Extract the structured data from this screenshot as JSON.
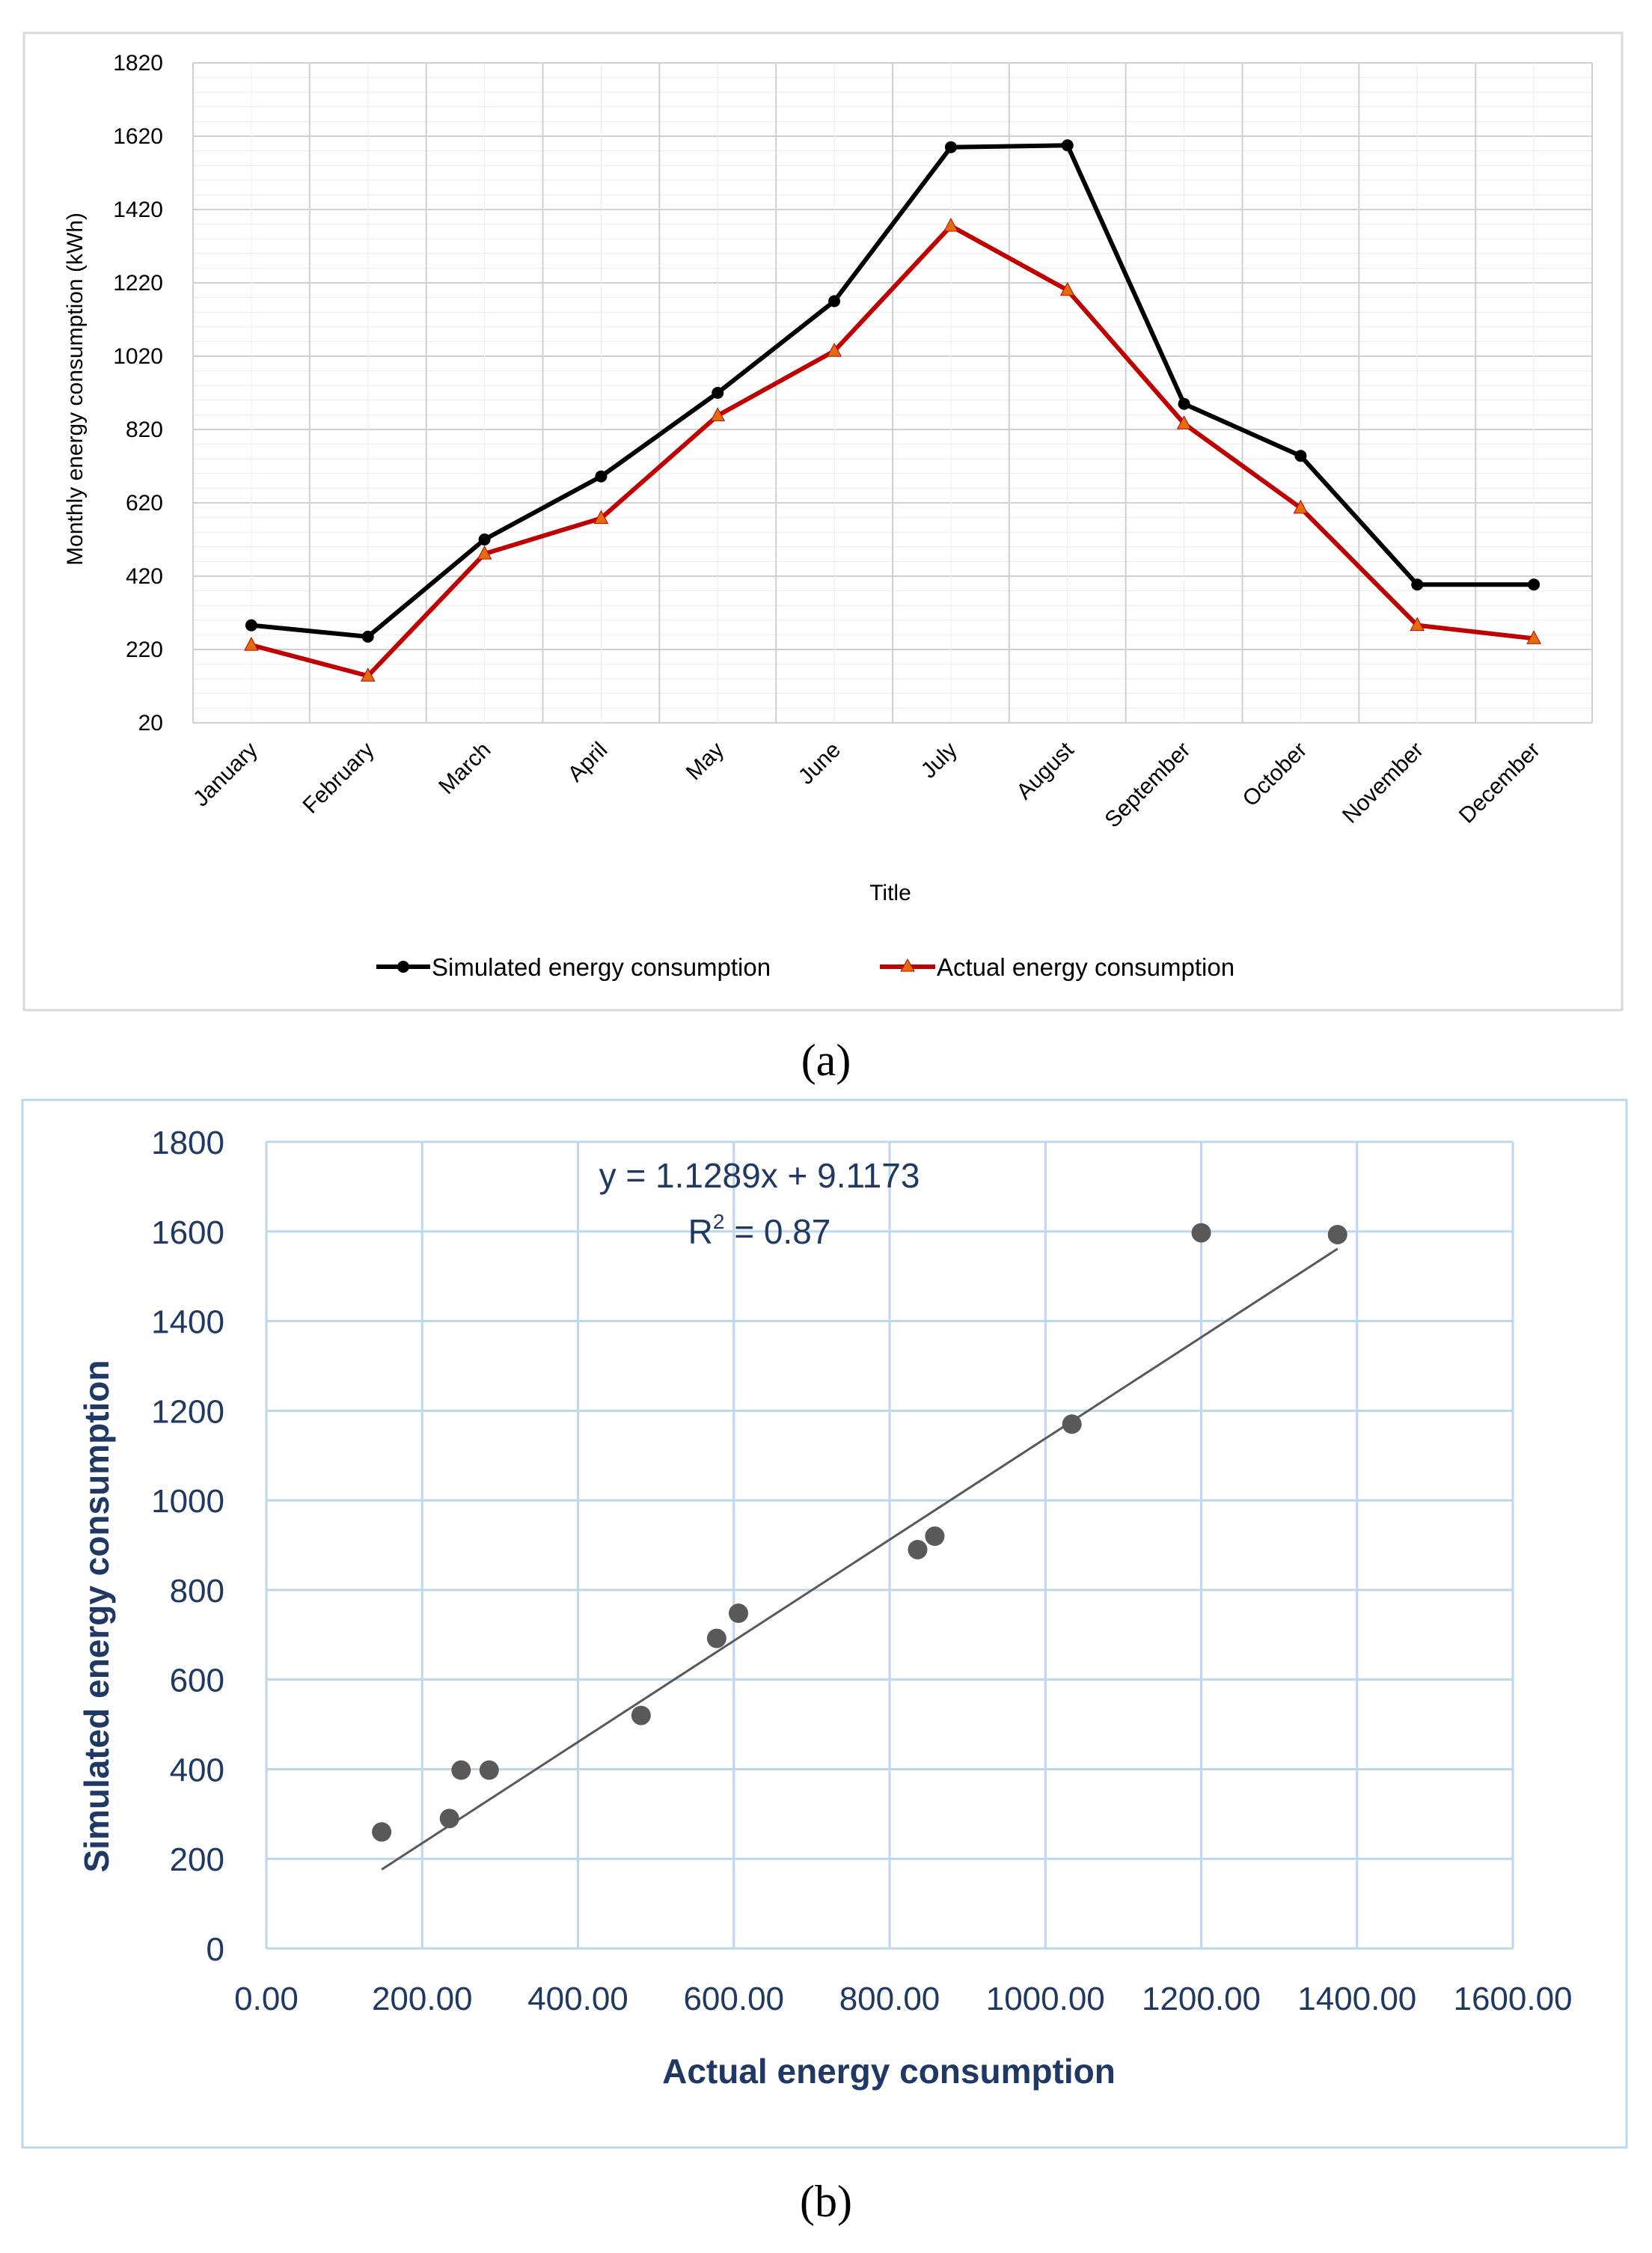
{
  "chart_data": [
    {
      "type": "line",
      "panel_label": "(a)",
      "categories": [
        "January",
        "February",
        "March",
        "April",
        "May",
        "June",
        "July",
        "August",
        "September",
        "October",
        "November",
        "December"
      ],
      "series": [
        {
          "name": "Simulated energy consumption",
          "color": "#000000",
          "marker": "circle",
          "values": [
            286,
            255,
            520,
            692,
            920,
            1170,
            1590,
            1595,
            890,
            748,
            397,
            397
          ]
        },
        {
          "name": "Actual energy consumption",
          "color": "#c00000",
          "marker": "triangle",
          "values": [
            232,
            148,
            481,
            578,
            858,
            1034,
            1375,
            1200,
            836,
            606,
            286,
            250
          ]
        }
      ],
      "title": "",
      "xlabel": "Title",
      "ylabel": "Monthly energy consumption (kWh)",
      "ylim": [
        20,
        1820
      ],
      "yticks": [
        "20",
        "220",
        "420",
        "620",
        "820",
        "1020",
        "1220",
        "1420",
        "1620",
        "1820"
      ],
      "legend": "bottom"
    },
    {
      "type": "scatter",
      "panel_label": "(b)",
      "points": [
        {
          "x": 148,
          "y": 260
        },
        {
          "x": 235,
          "y": 290
        },
        {
          "x": 250,
          "y": 398
        },
        {
          "x": 286,
          "y": 398
        },
        {
          "x": 481,
          "y": 520
        },
        {
          "x": 578,
          "y": 692
        },
        {
          "x": 606,
          "y": 748
        },
        {
          "x": 836,
          "y": 890
        },
        {
          "x": 858,
          "y": 920
        },
        {
          "x": 1034,
          "y": 1170
        },
        {
          "x": 1200,
          "y": 1597
        },
        {
          "x": 1375,
          "y": 1593
        }
      ],
      "trendline": {
        "slope": 1.1289,
        "intercept": 9.1173,
        "x_range": [
          148,
          1375
        ]
      },
      "equation": "y = 1.1289x + 9.1173",
      "r2_prefix": "R",
      "r2_sup": "2",
      "r2_value": " = 0.87",
      "xlabel": "Actual energy consumption",
      "ylabel": "Simulated energy consumption",
      "xlim": [
        0,
        1600
      ],
      "ylim": [
        0,
        1800
      ],
      "xticks": [
        "0.00",
        "200.00",
        "400.00",
        "600.00",
        "800.00",
        "1000.00",
        "1200.00",
        "1400.00",
        "1600.00"
      ],
      "yticks": [
        "0",
        "200",
        "400",
        "600",
        "800",
        "1000",
        "1200",
        "1400",
        "1600",
        "1800"
      ],
      "point_color": "#595959",
      "line_color": "#595959",
      "grid_color": "#bdd7ee"
    }
  ]
}
